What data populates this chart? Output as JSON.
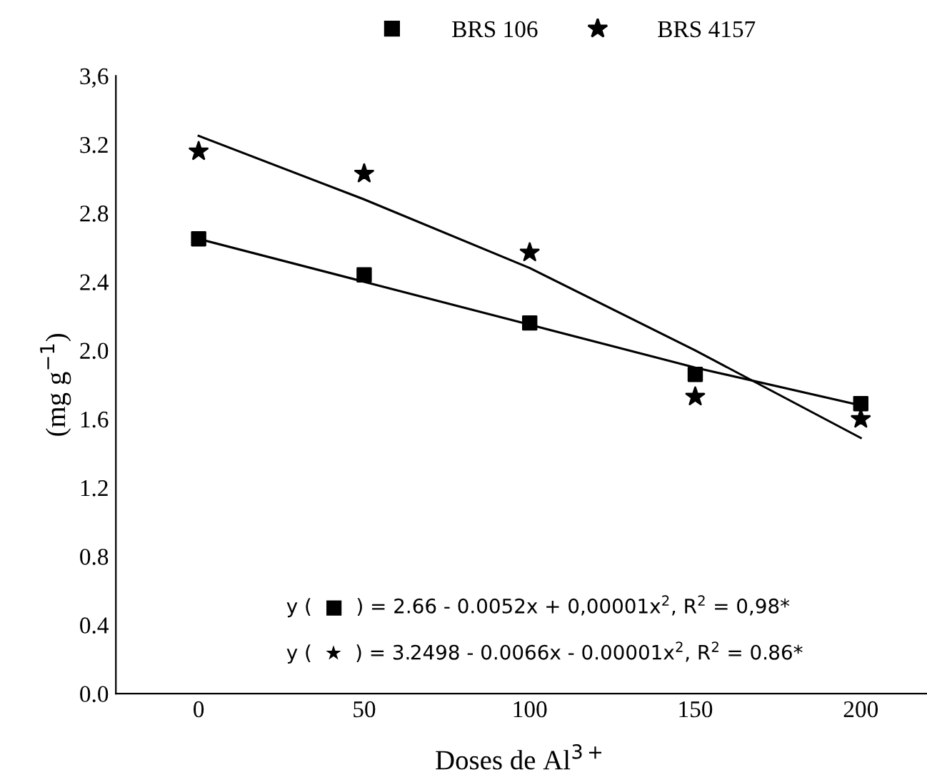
{
  "chart_data": {
    "type": "scatter",
    "xlabel": "Doses de Al$^{3+}$",
    "ylabel": "(mg g$^{−1}$)",
    "x": [
      0,
      50,
      100,
      150,
      200
    ],
    "series": [
      {
        "name": "BRS 106",
        "marker": "square",
        "color": "#000000",
        "values": [
          2.65,
          2.44,
          2.16,
          1.86,
          1.69
        ]
      },
      {
        "name": "BRS 4157",
        "marker": "star",
        "color": "#000000",
        "values": [
          3.16,
          3.03,
          2.57,
          1.73,
          1.6
        ]
      },
      {
        "type": "line",
        "marker": "none",
        "color": "#000000",
        "x": [
          0,
          50,
          100,
          150,
          200
        ],
        "values": [
          2.65,
          2.4,
          2.15,
          1.9,
          1.68
        ]
      },
      {
        "type": "line",
        "marker": "none",
        "color": "#000000",
        "x": [
          0,
          50,
          100,
          150,
          200
        ],
        "values": [
          3.25,
          2.88,
          2.48,
          2.0,
          1.49
        ]
      }
    ],
    "xlim": [
      -25,
      220
    ],
    "xticks": [
      0,
      50,
      100,
      150,
      200
    ],
    "ylim": [
      0,
      3.6
    ],
    "yticks": [
      {
        "value": 0,
        "label": "0.0"
      },
      0.4,
      0.8,
      1.2,
      1.6,
      {
        "value": 2,
        "label": "2.0"
      },
      2.4,
      2.8,
      3.2,
      {
        "value": 3.6,
        "label": "3,6"
      }
    ],
    "annotations": [
      "y (  ■  ) = 2.66 - 0.0052x + 0,00001x$^{2}$, R$^{2}$ = 0,98*",
      "y (  ★  ) = 3.2498 - 0.0066x - 0.00001x$^{2}$, R$^{2}$ = 0.86*"
    ],
    "legend": "top",
    "grid": false
  }
}
